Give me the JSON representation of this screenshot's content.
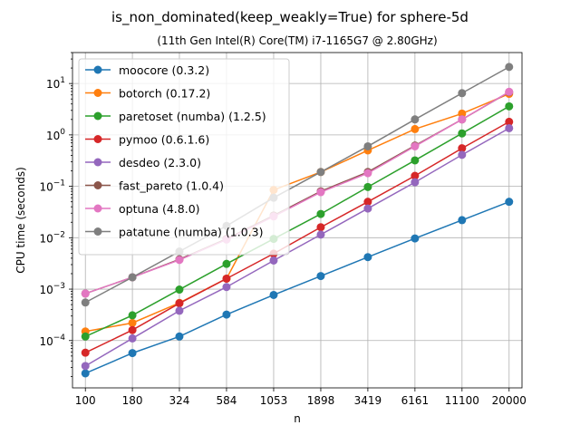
{
  "chart_data": {
    "type": "line",
    "title": "is_non_dominated(keep_weakly=True) for sphere-5d",
    "subtitle": "(11th Gen Intel(R) Core(TM) i7-1165G7 @ 2.80GHz)",
    "xlabel": "n",
    "ylabel": "CPU time (seconds)",
    "xscale": "log",
    "yscale": "log",
    "x": [
      100,
      180,
      324,
      584,
      1053,
      1898,
      3419,
      6161,
      11100,
      20000
    ],
    "x_tick_labels": [
      "100",
      "180",
      "324",
      "584",
      "1053",
      "1898",
      "3419",
      "6161",
      "11100",
      "20000"
    ],
    "y_tick_labels": [
      {
        "value": 0.0001,
        "base": "10",
        "exp": "−4"
      },
      {
        "value": 0.001,
        "base": "10",
        "exp": "−3"
      },
      {
        "value": 0.01,
        "base": "10",
        "exp": "−2"
      },
      {
        "value": 0.1,
        "base": "10",
        "exp": "−1"
      },
      {
        "value": 1,
        "base": "10",
        "exp": "0"
      },
      {
        "value": 10,
        "base": "10",
        "exp": "1"
      }
    ],
    "ylim": [
      1.2e-05,
      40
    ],
    "grid": true,
    "legend_position": "top-left",
    "series": [
      {
        "name": "moocore (0.3.2)",
        "color": "#1f77b4",
        "values": [
          2.3e-05,
          5.7e-05,
          0.00012,
          0.00032,
          0.00077,
          0.0018,
          0.0042,
          0.0097,
          0.022,
          0.05
        ]
      },
      {
        "name": "botorch (0.17.2)",
        "color": "#ff7f0e",
        "values": [
          0.00015,
          0.00022,
          0.00054,
          0.0016,
          0.085,
          0.19,
          0.5,
          1.3,
          2.6,
          6.3
        ]
      },
      {
        "name": "paretoset (numba) (1.2.5)",
        "color": "#2ca02c",
        "values": [
          0.00012,
          0.00031,
          0.00098,
          0.0031,
          0.0095,
          0.029,
          0.097,
          0.32,
          1.07,
          3.6
        ]
      },
      {
        "name": "pymoo (0.6.1.6)",
        "color": "#d62728",
        "values": [
          5.8e-05,
          0.00016,
          0.00053,
          0.0016,
          0.0049,
          0.016,
          0.05,
          0.16,
          0.55,
          1.8
        ]
      },
      {
        "name": "desdeo (2.3.0)",
        "color": "#9467bd",
        "values": [
          3.2e-05,
          0.00011,
          0.00038,
          0.0011,
          0.0036,
          0.0115,
          0.037,
          0.12,
          0.41,
          1.35
        ]
      },
      {
        "name": "fast_pareto (1.0.4)",
        "color": "#8c564b",
        "values": [
          0.00082,
          0.0017,
          0.0038,
          0.0095,
          0.027,
          0.08,
          0.19,
          0.62,
          2.0,
          6.8
        ]
      },
      {
        "name": "optuna (4.8.0)",
        "color": "#e377c2",
        "values": [
          0.00082,
          0.0017,
          0.0037,
          0.0092,
          0.026,
          0.077,
          0.18,
          0.6,
          2.0,
          6.9
        ]
      },
      {
        "name": "patatune (numba) (1.0.3)",
        "color": "#7f7f7f",
        "values": [
          0.00055,
          0.0017,
          0.0054,
          0.017,
          0.06,
          0.19,
          0.6,
          2.0,
          6.5,
          21
        ]
      }
    ]
  }
}
